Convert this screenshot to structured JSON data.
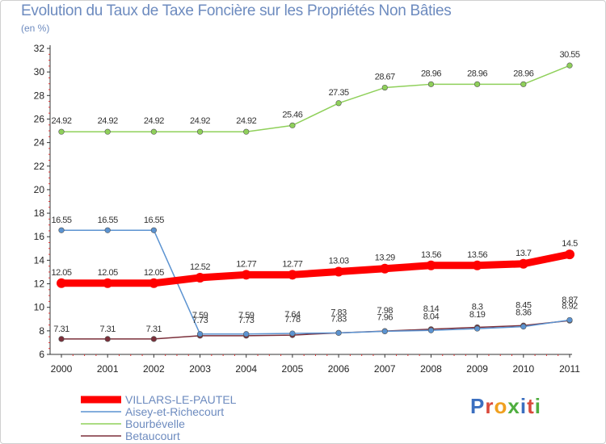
{
  "title": "Evolution du Taux de Taxe Foncière sur les Propriétés Non Bâties",
  "subtitle": "(en %)",
  "logo_text": "Proxiti",
  "chart_data": {
    "type": "line",
    "title": "Evolution du Taux de Taxe Foncière sur les Propriétés Non Bâties",
    "ylabel": "(en %)",
    "xlabel": "",
    "ylim": [
      6,
      32
    ],
    "yticks": [
      6,
      8,
      10,
      12,
      14,
      16,
      18,
      20,
      22,
      24,
      26,
      28,
      30,
      32
    ],
    "categories": [
      "2000",
      "2001",
      "2002",
      "2003",
      "2004",
      "2005",
      "2006",
      "2007",
      "2008",
      "2009",
      "2010",
      "2011"
    ],
    "legend_position": "bottom-left",
    "series": [
      {
        "name": "VILLARS-LE-PAUTEL",
        "color": "#ff0000",
        "values": [
          12.05,
          12.05,
          12.05,
          12.52,
          12.77,
          12.77,
          13.03,
          13.29,
          13.56,
          13.56,
          13.7,
          14.5
        ],
        "labels": [
          "12.05",
          "12.05",
          "12.05",
          "12.52",
          "12.77",
          "12.77",
          "13.03",
          "13.29",
          "13.56",
          "13.56",
          "13.7",
          "14.5"
        ]
      },
      {
        "name": "Aisey-et-Richecourt",
        "color": "#5b93d1",
        "values": [
          16.55,
          16.55,
          16.55,
          7.73,
          7.73,
          7.78,
          7.83,
          7.96,
          8.04,
          8.19,
          8.36,
          8.92
        ],
        "labels": [
          "16.55",
          "16.55",
          "16.55",
          "7.73",
          "7.73",
          "7.78",
          "7.83",
          "7.96",
          "8.04",
          "8.19",
          "8.36",
          "8.92"
        ]
      },
      {
        "name": "Bourbévelle",
        "color": "#8fd05a",
        "values": [
          24.92,
          24.92,
          24.92,
          24.92,
          24.92,
          25.46,
          27.35,
          28.67,
          28.96,
          28.96,
          28.96,
          30.55
        ],
        "labels": [
          "24.92",
          "24.92",
          "24.92",
          "24.92",
          "24.92",
          "25.46",
          "27.35",
          "28.67",
          "28.96",
          "28.96",
          "28.96",
          "30.55"
        ]
      },
      {
        "name": "Betaucourt",
        "color": "#7b2f3a",
        "values": [
          7.31,
          7.31,
          7.31,
          7.59,
          7.59,
          7.64,
          7.83,
          7.98,
          8.14,
          8.3,
          8.45,
          8.87
        ],
        "labels": [
          "7.31",
          "7.31",
          "7.31",
          "7.59",
          "7.59",
          "7.64",
          "7.83",
          "7.98",
          "8.14",
          "8.3",
          "8.45",
          "8.87"
        ]
      }
    ]
  }
}
